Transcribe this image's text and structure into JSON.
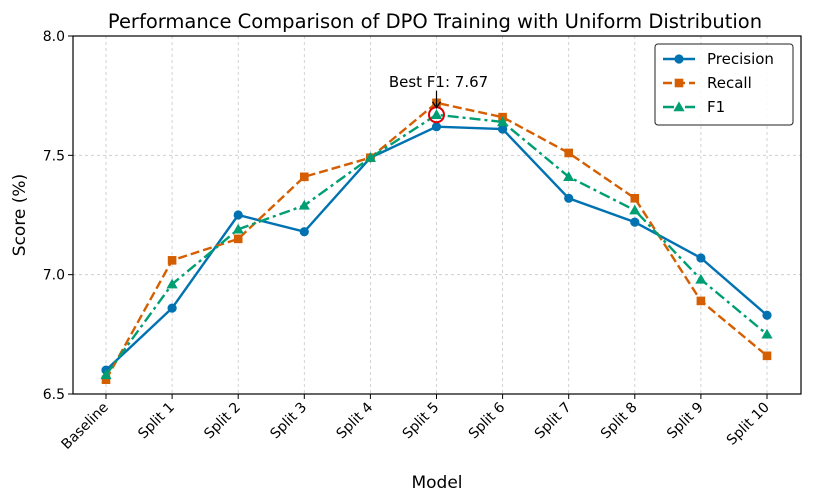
{
  "chart_data": {
    "type": "line",
    "title": "Performance Comparison of DPO Training with Uniform Distribution",
    "xlabel": "Model",
    "ylabel": "Score (%)",
    "categories": [
      "Baseline",
      "Split 1",
      "Split 2",
      "Split 3",
      "Split 4",
      "Split 5",
      "Split 6",
      "Split 7",
      "Split 8",
      "Split 9",
      "Split 10"
    ],
    "ylim": [
      6.5,
      8.0
    ],
    "yticks": [
      "6.5",
      "7.0",
      "7.5",
      "8.0"
    ],
    "grid": true,
    "legend_position": "top-right",
    "series": [
      {
        "name": "Precision",
        "color": "#0072B2",
        "marker": "circle",
        "dash": "solid",
        "values": [
          6.6,
          6.86,
          7.25,
          7.18,
          7.49,
          7.62,
          7.61,
          7.32,
          7.22,
          7.07,
          6.83
        ]
      },
      {
        "name": "Recall",
        "color": "#D55E00",
        "marker": "square",
        "dash": "dashed",
        "values": [
          6.56,
          7.06,
          7.15,
          7.41,
          7.49,
          7.72,
          7.66,
          7.51,
          7.32,
          6.89,
          6.66
        ]
      },
      {
        "name": "F1",
        "color": "#009E73",
        "marker": "triangle",
        "dash": "dashdot",
        "values": [
          6.58,
          6.96,
          7.19,
          7.29,
          7.49,
          7.67,
          7.64,
          7.41,
          7.27,
          6.98,
          6.75
        ]
      }
    ],
    "annotation": {
      "text": "Best F1: 7.67",
      "category": "Split 5",
      "value": 7.67,
      "color": "#DD0000"
    }
  }
}
